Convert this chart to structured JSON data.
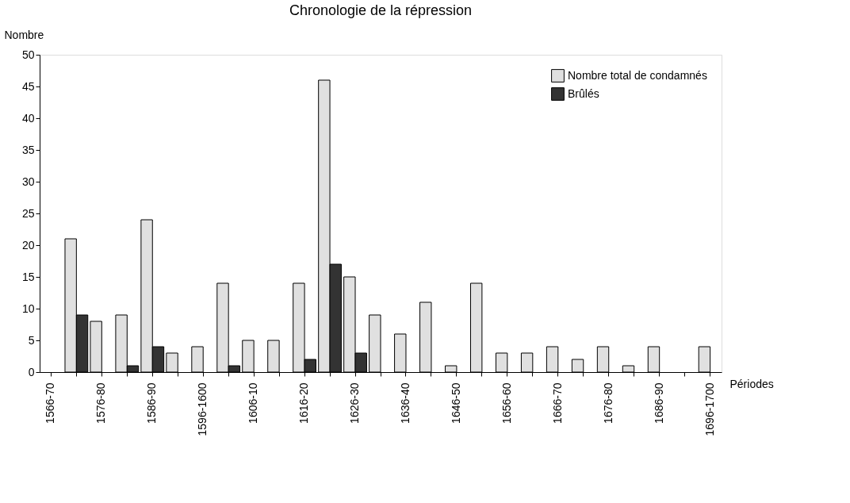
{
  "chart_data": {
    "type": "bar",
    "title": "Chronologie de la répression",
    "xlabel": "Périodes",
    "ylabel": "Nombre",
    "categories": [
      "1566-70",
      null,
      "1576-80",
      null,
      "1586-90",
      null,
      "1596-1600",
      null,
      "1606-10",
      null,
      "1616-20",
      null,
      "1626-30",
      null,
      "1636-40",
      null,
      "1646-50",
      null,
      "1656-60",
      null,
      "1666-70",
      null,
      "1676-80",
      null,
      "1686-90",
      null,
      "1696-1700"
    ],
    "series": [
      {
        "name": "Nombre total de condamnés",
        "color": "#e0e0e0",
        "values": [
          null,
          21,
          8,
          9,
          24,
          3,
          4,
          14,
          5,
          5,
          14,
          46,
          15,
          9,
          6,
          11,
          1,
          14,
          3,
          3,
          4,
          2,
          4,
          1,
          4,
          null,
          4
        ]
      },
      {
        "name": "Brûlés",
        "color": "#333333",
        "values": [
          null,
          9,
          null,
          1,
          4,
          null,
          null,
          1,
          null,
          null,
          2,
          17,
          3,
          null,
          null,
          null,
          null,
          null,
          null,
          null,
          null,
          null,
          null,
          null,
          null,
          null,
          null
        ]
      }
    ],
    "ylim": [
      0,
      50
    ],
    "yticks": [
      0,
      5,
      10,
      15,
      20,
      25,
      30,
      35,
      40,
      45,
      50
    ],
    "grid": false,
    "legend": "top right"
  }
}
